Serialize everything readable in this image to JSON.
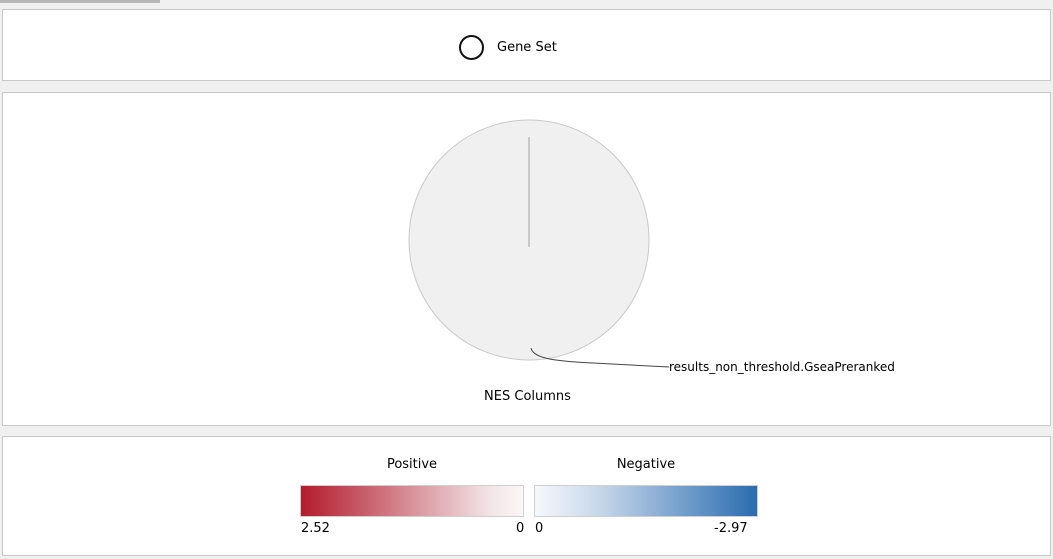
{
  "node_legend": {
    "label": "Gene Set",
    "icon": "circle-outline"
  },
  "chart": {
    "slice_label": "results_non_threshold.GseaPreranked",
    "columns_title": "NES Columns",
    "pie_fill": "#f0f0f0",
    "pie_stroke": "#c9c9c9"
  },
  "color_legend": {
    "positive": {
      "title": "Positive",
      "min_label": "2.52",
      "max_label": "0",
      "start_color": "#b31b2c",
      "end_color": "#faf7f7"
    },
    "negative": {
      "title": "Negative",
      "min_label": "0",
      "max_label": "-2.97",
      "start_color": "#f6f8fb",
      "end_color": "#2a6cb0"
    }
  }
}
